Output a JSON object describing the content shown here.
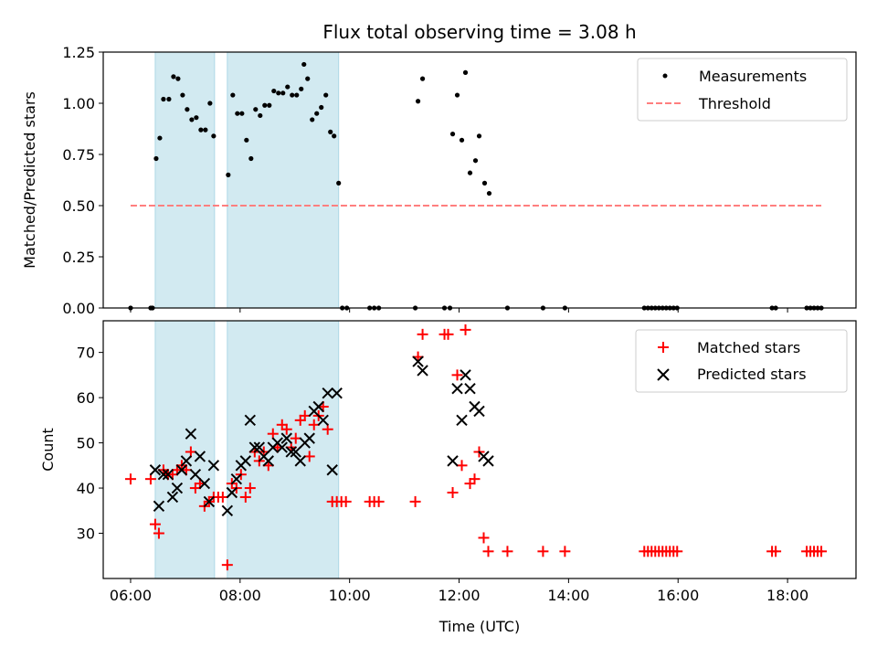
{
  "chart_data": [
    {
      "type": "scatter",
      "title": "Flux total observing time = 3.08 h",
      "xlabel": "",
      "ylabel": "Matched/Predicted stars",
      "xlim": [
        "05:30",
        "19:15"
      ],
      "ylim": [
        0,
        1.25
      ],
      "yticks": [
        "0.00",
        "0.25",
        "0.50",
        "0.75",
        "1.00",
        "1.25"
      ],
      "legend": {
        "position": "top-right",
        "entries": [
          "Measurements",
          "Threshold"
        ]
      },
      "shaded_intervals": [
        [
          "06:27",
          "07:32"
        ],
        [
          "07:46",
          "09:48"
        ]
      ],
      "colors": {
        "measurements": "#000000",
        "threshold": "#ff7f7f",
        "shade": "#add8e6"
      },
      "series": [
        {
          "name": "Measurements",
          "marker": "dot",
          "points": [
            [
              "06:00",
              0
            ],
            [
              "06:22",
              0
            ],
            [
              "06:24",
              0
            ],
            [
              "06:28",
              0.73
            ],
            [
              "06:32",
              0.83
            ],
            [
              "06:36",
              1.02
            ],
            [
              "06:42",
              1.02
            ],
            [
              "06:47",
              1.13
            ],
            [
              "06:52",
              1.12
            ],
            [
              "06:57",
              1.04
            ],
            [
              "07:02",
              0.97
            ],
            [
              "07:07",
              0.92
            ],
            [
              "07:12",
              0.93
            ],
            [
              "07:17",
              0.87
            ],
            [
              "07:22",
              0.87
            ],
            [
              "07:27",
              1.0
            ],
            [
              "07:31",
              0.84
            ],
            [
              "07:47",
              0.65
            ],
            [
              "07:52",
              1.04
            ],
            [
              "07:57",
              0.95
            ],
            [
              "08:02",
              0.95
            ],
            [
              "08:07",
              0.82
            ],
            [
              "08:12",
              0.73
            ],
            [
              "08:17",
              0.97
            ],
            [
              "08:22",
              0.94
            ],
            [
              "08:27",
              0.99
            ],
            [
              "08:32",
              0.99
            ],
            [
              "08:37",
              1.06
            ],
            [
              "08:42",
              1.05
            ],
            [
              "08:47",
              1.05
            ],
            [
              "08:52",
              1.08
            ],
            [
              "08:57",
              1.04
            ],
            [
              "09:02",
              1.04
            ],
            [
              "09:07",
              1.07
            ],
            [
              "09:10",
              1.19
            ],
            [
              "09:14",
              1.12
            ],
            [
              "09:19",
              0.92
            ],
            [
              "09:24",
              0.95
            ],
            [
              "09:29",
              0.98
            ],
            [
              "09:34",
              1.04
            ],
            [
              "09:39",
              0.86
            ],
            [
              "09:43",
              0.84
            ],
            [
              "09:48",
              0.61
            ],
            [
              "09:52",
              0
            ],
            [
              "09:57",
              0
            ],
            [
              "10:22",
              0
            ],
            [
              "10:27",
              0
            ],
            [
              "10:32",
              0
            ],
            [
              "11:12",
              0
            ],
            [
              "11:15",
              1.01
            ],
            [
              "11:20",
              1.12
            ],
            [
              "11:44",
              0
            ],
            [
              "11:50",
              0
            ],
            [
              "11:53",
              0.85
            ],
            [
              "11:58",
              1.04
            ],
            [
              "12:03",
              0.82
            ],
            [
              "12:07",
              1.15
            ],
            [
              "12:12",
              0.66
            ],
            [
              "12:18",
              0.72
            ],
            [
              "12:22",
              0.84
            ],
            [
              "12:28",
              0.61
            ],
            [
              "12:33",
              0.56
            ],
            [
              "12:53",
              0
            ],
            [
              "13:32",
              0
            ],
            [
              "13:56",
              0
            ],
            [
              "15:23",
              0
            ],
            [
              "15:27",
              0
            ],
            [
              "15:31",
              0
            ],
            [
              "15:35",
              0
            ],
            [
              "15:39",
              0
            ],
            [
              "15:43",
              0
            ],
            [
              "15:47",
              0
            ],
            [
              "15:51",
              0
            ],
            [
              "15:55",
              0
            ],
            [
              "15:59",
              0
            ],
            [
              "17:43",
              0
            ],
            [
              "17:47",
              0
            ],
            [
              "18:21",
              0
            ],
            [
              "18:25",
              0
            ],
            [
              "18:29",
              0
            ],
            [
              "18:33",
              0
            ],
            [
              "18:37",
              0
            ]
          ]
        },
        {
          "name": "Threshold",
          "style": "dashed",
          "points": [
            [
              "06:00",
              0.5
            ],
            [
              "18:37",
              0.5
            ]
          ]
        }
      ]
    },
    {
      "type": "scatter",
      "title": "",
      "xlabel": "Time (UTC)",
      "ylabel": "Count",
      "xlim": [
        "05:30",
        "19:15"
      ],
      "ylim": [
        20,
        77
      ],
      "xticks": [
        "06:00",
        "08:00",
        "10:00",
        "12:00",
        "14:00",
        "16:00",
        "18:00"
      ],
      "yticks": [
        "30",
        "40",
        "50",
        "60",
        "70"
      ],
      "legend": {
        "position": "top-right",
        "entries": [
          "Matched stars",
          "Predicted stars"
        ]
      },
      "shaded_intervals": [
        [
          "06:27",
          "07:32"
        ],
        [
          "07:46",
          "09:48"
        ]
      ],
      "colors": {
        "matched": "#ff0000",
        "predicted": "#000000",
        "shade": "#add8e6"
      },
      "series": [
        {
          "name": "Matched stars",
          "marker": "plus",
          "points": [
            [
              "06:00",
              42
            ],
            [
              "06:22",
              42
            ],
            [
              "06:27",
              32
            ],
            [
              "06:31",
              30
            ],
            [
              "06:36",
              44
            ],
            [
              "06:41",
              43
            ],
            [
              "06:46",
              43
            ],
            [
              "06:51",
              44
            ],
            [
              "06:56",
              45
            ],
            [
              "07:01",
              44
            ],
            [
              "07:06",
              48
            ],
            [
              "07:11",
              40
            ],
            [
              "07:16",
              41
            ],
            [
              "07:21",
              36
            ],
            [
              "07:26",
              37
            ],
            [
              "07:31",
              38
            ],
            [
              "07:36",
              38
            ],
            [
              "07:41",
              38
            ],
            [
              "07:46",
              23
            ],
            [
              "07:51",
              41
            ],
            [
              "07:56",
              40
            ],
            [
              "08:01",
              43
            ],
            [
              "08:06",
              38
            ],
            [
              "08:11",
              40
            ],
            [
              "08:16",
              48
            ],
            [
              "08:21",
              46
            ],
            [
              "08:26",
              48
            ],
            [
              "08:31",
              45
            ],
            [
              "08:36",
              52
            ],
            [
              "08:41",
              49
            ],
            [
              "08:46",
              54
            ],
            [
              "08:51",
              53
            ],
            [
              "08:56",
              49
            ],
            [
              "09:01",
              51
            ],
            [
              "09:06",
              55
            ],
            [
              "09:11",
              56
            ],
            [
              "09:16",
              47
            ],
            [
              "09:21",
              54
            ],
            [
              "09:26",
              56
            ],
            [
              "09:31",
              58
            ],
            [
              "09:36",
              53
            ],
            [
              "09:41",
              37
            ],
            [
              "09:46",
              37
            ],
            [
              "09:51",
              37
            ],
            [
              "09:56",
              37
            ],
            [
              "10:22",
              37
            ],
            [
              "10:27",
              37
            ],
            [
              "10:32",
              37
            ],
            [
              "11:12",
              37
            ],
            [
              "11:15",
              69
            ],
            [
              "11:20",
              74
            ],
            [
              "11:44",
              74
            ],
            [
              "11:48",
              74
            ],
            [
              "11:53",
              39
            ],
            [
              "11:58",
              65
            ],
            [
              "12:03",
              45
            ],
            [
              "12:07",
              75
            ],
            [
              "12:12",
              41
            ],
            [
              "12:17",
              42
            ],
            [
              "12:22",
              48
            ],
            [
              "12:27",
              29
            ],
            [
              "12:32",
              26
            ],
            [
              "12:53",
              26
            ],
            [
              "13:32",
              26
            ],
            [
              "13:56",
              26
            ],
            [
              "15:23",
              26
            ],
            [
              "15:27",
              26
            ],
            [
              "15:31",
              26
            ],
            [
              "15:35",
              26
            ],
            [
              "15:39",
              26
            ],
            [
              "15:43",
              26
            ],
            [
              "15:47",
              26
            ],
            [
              "15:51",
              26
            ],
            [
              "15:55",
              26
            ],
            [
              "15:59",
              26
            ],
            [
              "17:43",
              26
            ],
            [
              "17:47",
              26
            ],
            [
              "18:21",
              26
            ],
            [
              "18:25",
              26
            ],
            [
              "18:29",
              26
            ],
            [
              "18:33",
              26
            ],
            [
              "18:37",
              26
            ]
          ]
        },
        {
          "name": "Predicted stars",
          "marker": "x",
          "points": [
            [
              "06:27",
              44
            ],
            [
              "06:31",
              36
            ],
            [
              "06:36",
              43
            ],
            [
              "06:41",
              43
            ],
            [
              "06:46",
              38
            ],
            [
              "06:51",
              40
            ],
            [
              "06:56",
              44
            ],
            [
              "07:01",
              46
            ],
            [
              "07:06",
              52
            ],
            [
              "07:11",
              43
            ],
            [
              "07:16",
              47
            ],
            [
              "07:21",
              41
            ],
            [
              "07:26",
              37
            ],
            [
              "07:31",
              45
            ],
            [
              "07:46",
              35
            ],
            [
              "07:51",
              39
            ],
            [
              "07:56",
              42
            ],
            [
              "08:01",
              45
            ],
            [
              "08:06",
              46
            ],
            [
              "08:11",
              55
            ],
            [
              "08:16",
              49
            ],
            [
              "08:21",
              49
            ],
            [
              "08:26",
              47
            ],
            [
              "08:31",
              46
            ],
            [
              "08:36",
              49
            ],
            [
              "08:41",
              50
            ],
            [
              "08:46",
              49
            ],
            [
              "08:51",
              51
            ],
            [
              "08:56",
              48
            ],
            [
              "09:01",
              48
            ],
            [
              "09:06",
              46
            ],
            [
              "09:11",
              50
            ],
            [
              "09:16",
              51
            ],
            [
              "09:21",
              57
            ],
            [
              "09:26",
              58
            ],
            [
              "09:31",
              55
            ],
            [
              "09:36",
              61
            ],
            [
              "09:41",
              44
            ],
            [
              "09:46",
              61
            ],
            [
              "11:15",
              68
            ],
            [
              "11:20",
              66
            ],
            [
              "11:53",
              46
            ],
            [
              "11:58",
              62
            ],
            [
              "12:03",
              55
            ],
            [
              "12:07",
              65
            ],
            [
              "12:12",
              62
            ],
            [
              "12:17",
              58
            ],
            [
              "12:22",
              57
            ],
            [
              "12:27",
              47
            ],
            [
              "12:32",
              46
            ]
          ]
        }
      ]
    }
  ]
}
